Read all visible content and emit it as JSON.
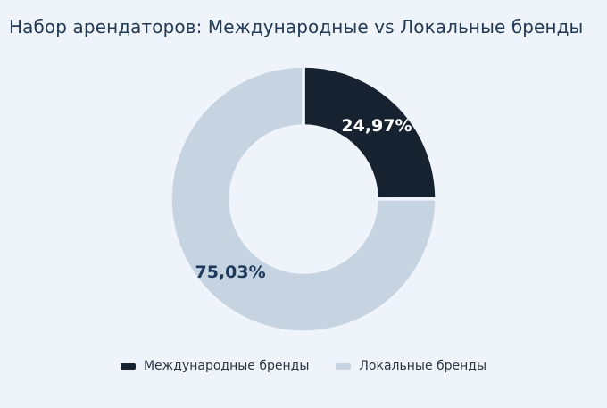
{
  "title": "Набор арендаторов: Международные vs Локальные бренды",
  "colors": {
    "background": "#eff4fb",
    "title_text": "#233a54",
    "legend_text": "#2b3440",
    "international_brand": "#16222f",
    "local_brand": "#c6d4e1"
  },
  "chart_data": {
    "type": "pie",
    "donut": true,
    "inner_radius_ratio": 0.55,
    "start_angle": "top",
    "direction": "clockwise",
    "title": "Набор арендаторов: Международные vs Локальные бренды",
    "categories": [
      "Международные бренды",
      "Локальные бренды"
    ],
    "values": [
      24.97,
      75.03
    ],
    "value_labels": [
      "24,97%",
      "75,03%"
    ],
    "slice_colors": [
      "#16222f",
      "#c6d4e1"
    ],
    "value_label_colors": [
      "#ffffff",
      "#1d3a5c"
    ],
    "unit": "%",
    "legend_position": "bottom",
    "grid": false
  },
  "legend": {
    "items": [
      {
        "label": "Международные бренды",
        "color": "#16222f"
      },
      {
        "label": "Локальные бренды",
        "color": "#c6d4e1"
      }
    ]
  }
}
